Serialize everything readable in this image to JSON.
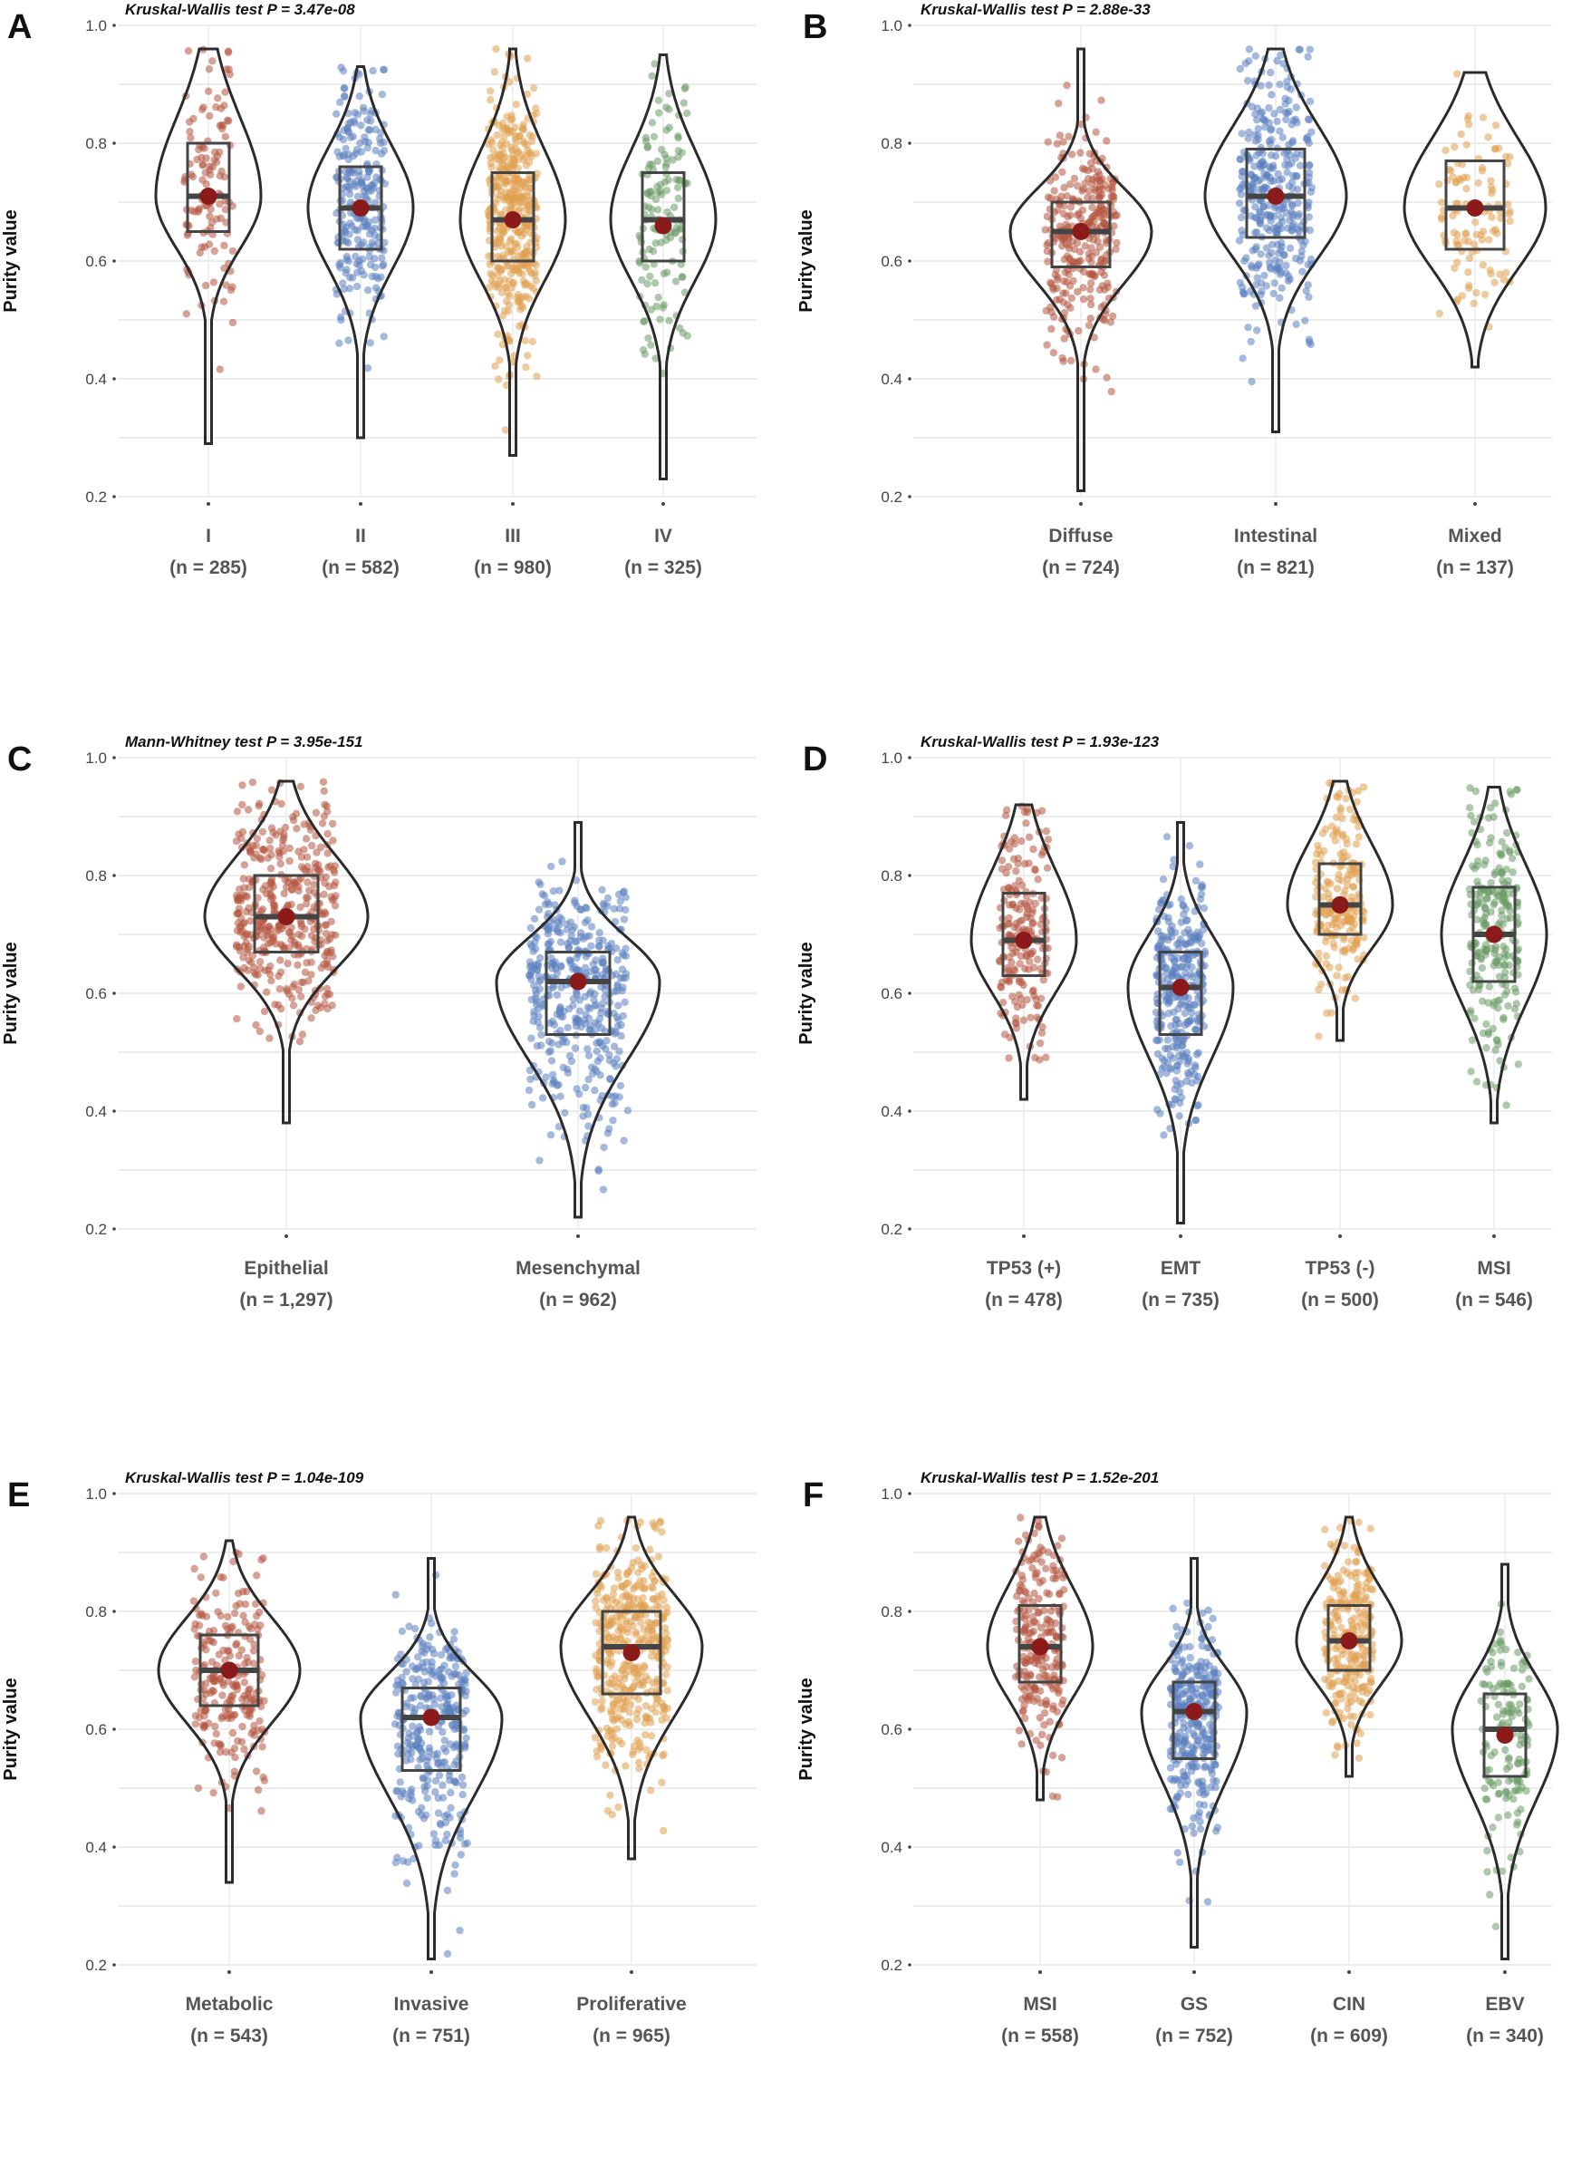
{
  "chart_data": [
    {
      "id": "A",
      "letter": "A",
      "type": "violin",
      "title": "Kruskal-Wallis test P = 3.47e-08",
      "ylabel": "Purity value",
      "ylim": [
        0.2,
        1.0
      ],
      "yticks": [
        0.2,
        0.4,
        0.6,
        0.8,
        1.0
      ],
      "categories": [
        "I",
        "II",
        "III",
        "IV"
      ],
      "counts": [
        "(n = 285)",
        "(n = 582)",
        "(n = 980)",
        "(n = 325)"
      ],
      "colors": [
        "#b5553f",
        "#5b7fc0",
        "#e0a050",
        "#6a9a64"
      ],
      "series": [
        {
          "min": 0.29,
          "q1": 0.65,
          "median": 0.71,
          "q3": 0.8,
          "max": 0.96,
          "mean": 0.71
        },
        {
          "min": 0.3,
          "q1": 0.62,
          "median": 0.69,
          "q3": 0.76,
          "max": 0.93,
          "mean": 0.69
        },
        {
          "min": 0.27,
          "q1": 0.6,
          "median": 0.67,
          "q3": 0.75,
          "max": 0.96,
          "mean": 0.67
        },
        {
          "min": 0.23,
          "q1": 0.6,
          "median": 0.67,
          "q3": 0.75,
          "max": 0.95,
          "mean": 0.66
        }
      ]
    },
    {
      "id": "B",
      "letter": "B",
      "type": "violin",
      "title": "Kruskal-Wallis test P = 2.88e-33",
      "ylabel": "Purity value",
      "ylim": [
        0.2,
        1.0
      ],
      "yticks": [
        0.2,
        0.4,
        0.6,
        0.8,
        1.0
      ],
      "categories": [
        "Diffuse",
        "Intestinal",
        "Mixed"
      ],
      "counts": [
        "(n = 724)",
        "(n = 821)",
        "(n = 137)"
      ],
      "colors": [
        "#b5553f",
        "#5b7fc0",
        "#e0a050"
      ],
      "series": [
        {
          "min": 0.21,
          "q1": 0.59,
          "median": 0.65,
          "q3": 0.7,
          "max": 0.96,
          "mean": 0.65
        },
        {
          "min": 0.31,
          "q1": 0.64,
          "median": 0.71,
          "q3": 0.79,
          "max": 0.96,
          "mean": 0.71
        },
        {
          "min": 0.42,
          "q1": 0.62,
          "median": 0.69,
          "q3": 0.77,
          "max": 0.92,
          "mean": 0.69
        }
      ]
    },
    {
      "id": "C",
      "letter": "C",
      "type": "violin",
      "title": "Mann-Whitney test P = 3.95e-151",
      "ylabel": "Purity value",
      "ylim": [
        0.2,
        1.0
      ],
      "yticks": [
        0.2,
        0.4,
        0.6,
        0.8,
        1.0
      ],
      "categories": [
        "Epithelial",
        "Mesenchymal"
      ],
      "counts": [
        "(n = 1,297)",
        "(n = 962)"
      ],
      "colors": [
        "#b5553f",
        "#5b7fc0"
      ],
      "series": [
        {
          "min": 0.38,
          "q1": 0.67,
          "median": 0.73,
          "q3": 0.8,
          "max": 0.96,
          "mean": 0.73
        },
        {
          "min": 0.22,
          "q1": 0.53,
          "median": 0.62,
          "q3": 0.67,
          "max": 0.89,
          "mean": 0.62
        }
      ]
    },
    {
      "id": "D",
      "letter": "D",
      "type": "violin",
      "title": "Kruskal-Wallis test P = 1.93e-123",
      "ylabel": "Purity value",
      "ylim": [
        0.2,
        1.0
      ],
      "yticks": [
        0.2,
        0.4,
        0.6,
        0.8,
        1.0
      ],
      "categories": [
        "TP53 (+)",
        "EMT",
        "TP53 (-)",
        "MSI"
      ],
      "counts": [
        "(n = 478)",
        "(n = 735)",
        "(n = 500)",
        "(n = 546)"
      ],
      "colors": [
        "#b5553f",
        "#5b7fc0",
        "#e0a050",
        "#6a9a64"
      ],
      "series": [
        {
          "min": 0.42,
          "q1": 0.63,
          "median": 0.69,
          "q3": 0.77,
          "max": 0.92,
          "mean": 0.69
        },
        {
          "min": 0.21,
          "q1": 0.53,
          "median": 0.61,
          "q3": 0.67,
          "max": 0.89,
          "mean": 0.61
        },
        {
          "min": 0.52,
          "q1": 0.7,
          "median": 0.75,
          "q3": 0.82,
          "max": 0.96,
          "mean": 0.75
        },
        {
          "min": 0.38,
          "q1": 0.62,
          "median": 0.7,
          "q3": 0.78,
          "max": 0.95,
          "mean": 0.7
        }
      ]
    },
    {
      "id": "E",
      "letter": "E",
      "type": "violin",
      "title": "Kruskal-Wallis test P = 1.04e-109",
      "ylabel": "Purity value",
      "ylim": [
        0.2,
        1.0
      ],
      "yticks": [
        0.2,
        0.4,
        0.6,
        0.8,
        1.0
      ],
      "categories": [
        "Metabolic",
        "Invasive",
        "Proliferative"
      ],
      "counts": [
        "(n = 543)",
        "(n = 751)",
        "(n = 965)"
      ],
      "colors": [
        "#b5553f",
        "#5b7fc0",
        "#e0a050"
      ],
      "series": [
        {
          "min": 0.34,
          "q1": 0.64,
          "median": 0.7,
          "q3": 0.76,
          "max": 0.92,
          "mean": 0.7
        },
        {
          "min": 0.21,
          "q1": 0.53,
          "median": 0.62,
          "q3": 0.67,
          "max": 0.89,
          "mean": 0.62
        },
        {
          "min": 0.38,
          "q1": 0.66,
          "median": 0.74,
          "q3": 0.8,
          "max": 0.96,
          "mean": 0.73
        }
      ]
    },
    {
      "id": "F",
      "letter": "F",
      "type": "violin",
      "title": "Kruskal-Wallis test P = 1.52e-201",
      "ylabel": "Purity value",
      "ylim": [
        0.2,
        1.0
      ],
      "yticks": [
        0.2,
        0.4,
        0.6,
        0.8,
        1.0
      ],
      "categories": [
        "MSI",
        "GS",
        "CIN",
        "EBV"
      ],
      "counts": [
        "(n = 558)",
        "(n = 752)",
        "(n = 609)",
        "(n = 340)"
      ],
      "colors": [
        "#b5553f",
        "#5b7fc0",
        "#e0a050",
        "#6a9a64"
      ],
      "series": [
        {
          "min": 0.48,
          "q1": 0.68,
          "median": 0.74,
          "q3": 0.81,
          "max": 0.96,
          "mean": 0.74
        },
        {
          "min": 0.23,
          "q1": 0.55,
          "median": 0.63,
          "q3": 0.68,
          "max": 0.89,
          "mean": 0.63
        },
        {
          "min": 0.52,
          "q1": 0.7,
          "median": 0.75,
          "q3": 0.81,
          "max": 0.96,
          "mean": 0.75
        },
        {
          "min": 0.21,
          "q1": 0.52,
          "median": 0.6,
          "q3": 0.66,
          "max": 0.88,
          "mean": 0.59
        }
      ]
    }
  ]
}
